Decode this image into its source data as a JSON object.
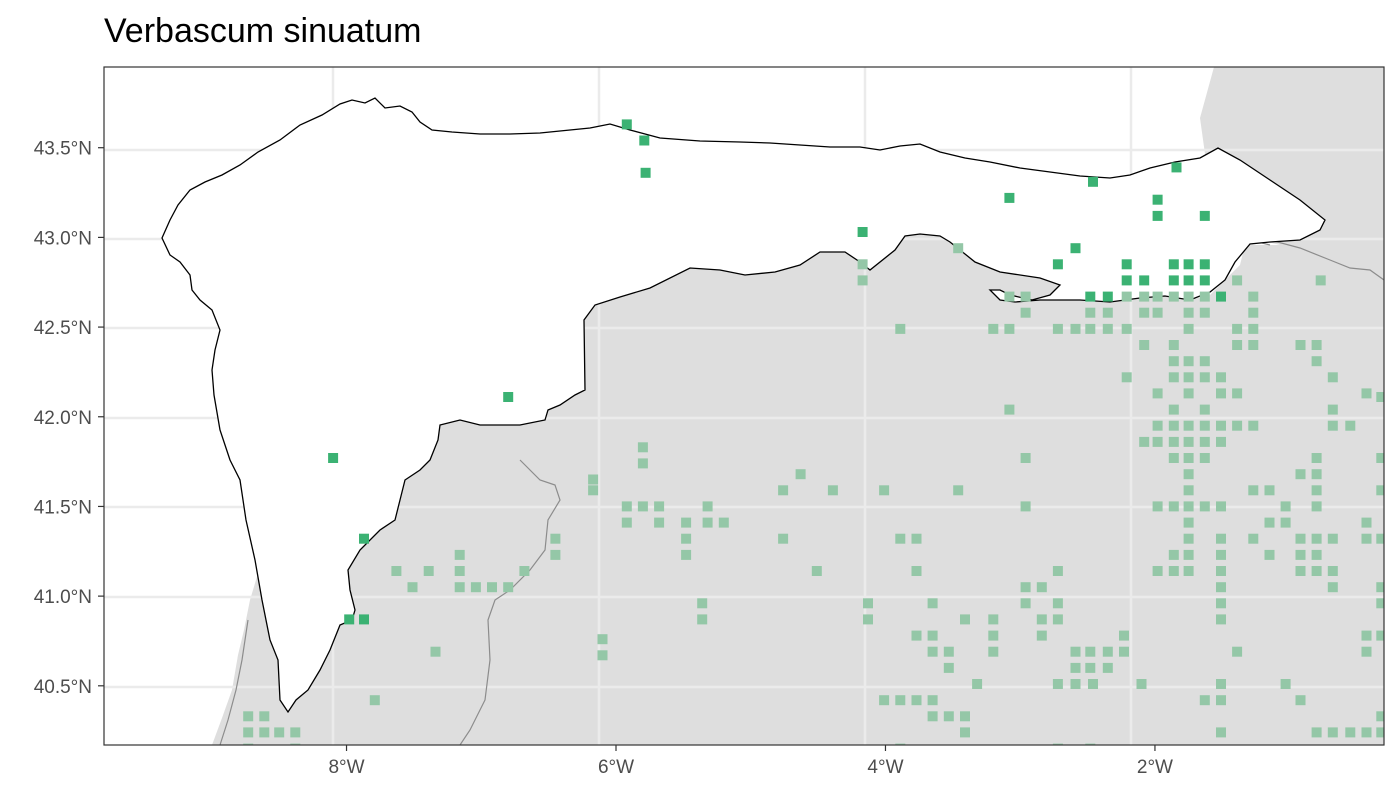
{
  "title": "Verbascum sinuatum",
  "colors": {
    "outside_fill": "#dedede",
    "region_fill": "#ffffff",
    "region_stroke": "#000000",
    "border_stroke": "#8c8c8c",
    "grid": "#ebebeb",
    "panel_border": "#333333",
    "point_in_region": "#3bb273",
    "point_outside": "#94c7a7"
  },
  "axes": {
    "x_range": [
      -9.8,
      -0.3
    ],
    "y_range": [
      40.17,
      43.95
    ],
    "x_ticks": [
      {
        "value": -8,
        "label": "8°W"
      },
      {
        "value": -6,
        "label": "6°W"
      },
      {
        "value": -4,
        "label": "4°W"
      },
      {
        "value": -2,
        "label": "2°W"
      }
    ],
    "y_ticks": [
      {
        "value": 43.5,
        "label": "43.5°N"
      },
      {
        "value": 43.0,
        "label": "43.0°N"
      },
      {
        "value": 42.5,
        "label": "42.5°N"
      },
      {
        "value": 42.0,
        "label": "42.0°N"
      },
      {
        "value": 41.5,
        "label": "41.5°N"
      },
      {
        "value": 41.0,
        "label": "41.0°N"
      },
      {
        "value": 40.5,
        "label": "40.5°N"
      }
    ],
    "grid": true
  },
  "points_in_region": [
    [
      -5.92,
      43.63
    ],
    [
      -5.79,
      43.54
    ],
    [
      -5.78,
      43.36
    ],
    [
      -4.17,
      43.03
    ],
    [
      -3.08,
      43.22
    ],
    [
      -2.46,
      43.31
    ],
    [
      -1.98,
      43.21
    ],
    [
      -1.98,
      43.12
    ],
    [
      -1.84,
      43.39
    ],
    [
      -1.63,
      43.12
    ],
    [
      -2.59,
      42.94
    ],
    [
      -2.72,
      42.85
    ],
    [
      -2.21,
      42.85
    ],
    [
      -2.21,
      42.76
    ],
    [
      -2.08,
      42.76
    ],
    [
      -1.86,
      42.85
    ],
    [
      -1.75,
      42.85
    ],
    [
      -1.63,
      42.85
    ],
    [
      -1.86,
      42.76
    ],
    [
      -1.75,
      42.76
    ],
    [
      -1.63,
      42.76
    ],
    [
      -1.51,
      42.67
    ],
    [
      -2.48,
      42.67
    ],
    [
      -2.35,
      42.67
    ],
    [
      -6.8,
      42.11
    ],
    [
      -8.1,
      41.77
    ],
    [
      -7.87,
      41.32
    ],
    [
      -7.98,
      40.87
    ],
    [
      -7.87,
      40.87
    ]
  ],
  "points_outside": [
    [
      -4.17,
      42.85
    ],
    [
      -4.17,
      42.76
    ],
    [
      -3.46,
      42.94
    ],
    [
      -3.08,
      42.67
    ],
    [
      -2.96,
      42.67
    ],
    [
      -2.96,
      42.58
    ],
    [
      -3.2,
      42.49
    ],
    [
      -3.08,
      42.49
    ],
    [
      -2.72,
      42.49
    ],
    [
      -2.59,
      42.49
    ],
    [
      -2.48,
      42.49
    ],
    [
      -2.35,
      42.49
    ],
    [
      -2.21,
      42.49
    ],
    [
      -2.21,
      42.67
    ],
    [
      -2.08,
      42.67
    ],
    [
      -1.98,
      42.67
    ],
    [
      -1.86,
      42.67
    ],
    [
      -1.75,
      42.67
    ],
    [
      -1.63,
      42.67
    ],
    [
      -2.48,
      42.58
    ],
    [
      -2.35,
      42.58
    ],
    [
      -2.08,
      42.58
    ],
    [
      -1.98,
      42.58
    ],
    [
      -1.75,
      42.58
    ],
    [
      -1.63,
      42.58
    ],
    [
      -1.75,
      42.49
    ],
    [
      -1.39,
      42.76
    ],
    [
      -1.27,
      42.67
    ],
    [
      -1.27,
      42.58
    ],
    [
      -1.27,
      42.49
    ],
    [
      -1.39,
      42.49
    ],
    [
      -1.39,
      42.4
    ],
    [
      -1.27,
      42.4
    ],
    [
      -2.08,
      42.4
    ],
    [
      -1.86,
      42.4
    ],
    [
      -1.86,
      42.31
    ],
    [
      -1.75,
      42.31
    ],
    [
      -1.63,
      42.31
    ],
    [
      -1.86,
      42.22
    ],
    [
      -1.75,
      42.22
    ],
    [
      -1.63,
      42.22
    ],
    [
      -1.51,
      42.22
    ],
    [
      -2.21,
      42.22
    ],
    [
      -1.98,
      42.13
    ],
    [
      -1.75,
      42.13
    ],
    [
      -1.51,
      42.13
    ],
    [
      -1.39,
      42.13
    ],
    [
      -1.86,
      42.04
    ],
    [
      -1.63,
      42.04
    ],
    [
      -1.98,
      41.95
    ],
    [
      -1.86,
      41.95
    ],
    [
      -1.75,
      41.95
    ],
    [
      -1.63,
      41.95
    ],
    [
      -1.51,
      41.95
    ],
    [
      -1.39,
      41.95
    ],
    [
      -1.27,
      41.95
    ],
    [
      -1.98,
      41.86
    ],
    [
      -1.86,
      41.86
    ],
    [
      -1.75,
      41.86
    ],
    [
      -1.63,
      41.86
    ],
    [
      -1.51,
      41.86
    ],
    [
      -2.08,
      41.86
    ],
    [
      -1.86,
      41.77
    ],
    [
      -1.75,
      41.77
    ],
    [
      -1.63,
      41.77
    ],
    [
      -1.75,
      41.68
    ],
    [
      -1.75,
      41.59
    ],
    [
      -1.98,
      41.5
    ],
    [
      -1.86,
      41.5
    ],
    [
      -1.75,
      41.5
    ],
    [
      -1.63,
      41.5
    ],
    [
      -1.51,
      41.5
    ],
    [
      -1.75,
      41.41
    ],
    [
      -1.75,
      41.32
    ],
    [
      -1.51,
      41.32
    ],
    [
      -1.86,
      41.23
    ],
    [
      -1.75,
      41.23
    ],
    [
      -1.51,
      41.23
    ],
    [
      -1.98,
      41.14
    ],
    [
      -1.86,
      41.14
    ],
    [
      -1.75,
      41.14
    ],
    [
      -1.51,
      41.14
    ],
    [
      -1.27,
      41.59
    ],
    [
      -1.15,
      41.59
    ],
    [
      -1.27,
      41.32
    ],
    [
      -1.15,
      41.23
    ],
    [
      -1.03,
      41.41
    ],
    [
      -1.03,
      41.5
    ],
    [
      -1.15,
      41.41
    ],
    [
      -0.92,
      41.68
    ],
    [
      -0.8,
      41.77
    ],
    [
      -0.8,
      41.68
    ],
    [
      -0.8,
      41.59
    ],
    [
      -0.8,
      41.5
    ],
    [
      -0.92,
      41.32
    ],
    [
      -0.8,
      41.32
    ],
    [
      -0.68,
      41.32
    ],
    [
      -0.92,
      41.23
    ],
    [
      -0.8,
      41.23
    ],
    [
      -0.92,
      41.14
    ],
    [
      -0.8,
      41.14
    ],
    [
      -0.68,
      41.14
    ],
    [
      -0.68,
      41.05
    ],
    [
      -0.92,
      42.4
    ],
    [
      -0.8,
      42.4
    ],
    [
      -0.8,
      42.31
    ],
    [
      -0.68,
      42.22
    ],
    [
      -0.68,
      42.04
    ],
    [
      -0.68,
      41.95
    ],
    [
      -0.55,
      41.95
    ],
    [
      -0.77,
      42.76
    ],
    [
      -0.43,
      42.13
    ],
    [
      -0.32,
      42.11
    ],
    [
      -0.32,
      41.77
    ],
    [
      -0.43,
      41.41
    ],
    [
      -0.43,
      41.32
    ],
    [
      -0.32,
      41.32
    ],
    [
      -0.32,
      41.59
    ],
    [
      -0.32,
      41.05
    ],
    [
      -0.32,
      40.96
    ],
    [
      -0.32,
      40.78
    ],
    [
      -0.43,
      40.78
    ],
    [
      -0.43,
      40.69
    ],
    [
      -1.03,
      40.51
    ],
    [
      -0.92,
      40.42
    ],
    [
      -0.68,
      40.24
    ],
    [
      -0.55,
      40.24
    ],
    [
      -0.43,
      40.24
    ],
    [
      -0.32,
      40.24
    ],
    [
      -0.32,
      40.33
    ],
    [
      -0.8,
      40.24
    ],
    [
      -1.39,
      40.69
    ],
    [
      -1.51,
      40.24
    ],
    [
      -1.63,
      40.42
    ],
    [
      -1.51,
      40.42
    ],
    [
      -1.51,
      40.87
    ],
    [
      -1.51,
      40.96
    ],
    [
      -1.51,
      41.05
    ],
    [
      -1.51,
      40.51
    ],
    [
      -3.08,
      42.04
    ],
    [
      -2.96,
      41.77
    ],
    [
      -2.96,
      41.5
    ],
    [
      -3.46,
      41.59
    ],
    [
      -3.89,
      42.49
    ],
    [
      -4.01,
      41.59
    ],
    [
      -4.51,
      41.14
    ],
    [
      -4.39,
      41.59
    ],
    [
      -4.63,
      41.68
    ],
    [
      -4.76,
      41.59
    ],
    [
      -4.76,
      41.32
    ],
    [
      -3.89,
      41.32
    ],
    [
      -3.77,
      41.32
    ],
    [
      -3.77,
      41.14
    ],
    [
      -4.13,
      40.96
    ],
    [
      -4.13,
      40.87
    ],
    [
      -3.65,
      40.96
    ],
    [
      -3.77,
      40.78
    ],
    [
      -3.65,
      40.78
    ],
    [
      -3.65,
      40.69
    ],
    [
      -3.53,
      40.69
    ],
    [
      -3.53,
      40.6
    ],
    [
      -3.41,
      40.87
    ],
    [
      -3.2,
      40.87
    ],
    [
      -3.2,
      40.78
    ],
    [
      -3.2,
      40.69
    ],
    [
      -3.32,
      40.51
    ],
    [
      -2.96,
      41.05
    ],
    [
      -2.84,
      41.05
    ],
    [
      -2.72,
      41.14
    ],
    [
      -2.96,
      40.96
    ],
    [
      -2.72,
      40.96
    ],
    [
      -2.84,
      40.87
    ],
    [
      -2.72,
      40.87
    ],
    [
      -2.84,
      40.78
    ],
    [
      -2.59,
      40.69
    ],
    [
      -2.48,
      40.69
    ],
    [
      -2.35,
      40.69
    ],
    [
      -2.59,
      40.6
    ],
    [
      -2.48,
      40.6
    ],
    [
      -2.35,
      40.6
    ],
    [
      -2.23,
      40.69
    ],
    [
      -2.23,
      40.78
    ],
    [
      -2.72,
      40.51
    ],
    [
      -2.59,
      40.51
    ],
    [
      -2.46,
      40.51
    ],
    [
      -2.1,
      40.51
    ],
    [
      -4.01,
      40.42
    ],
    [
      -3.89,
      40.42
    ],
    [
      -3.77,
      40.42
    ],
    [
      -3.65,
      40.42
    ],
    [
      -3.65,
      40.33
    ],
    [
      -3.53,
      40.33
    ],
    [
      -3.41,
      40.33
    ],
    [
      -3.41,
      40.24
    ],
    [
      -3.89,
      40.15
    ],
    [
      -2.72,
      40.15
    ],
    [
      -2.48,
      40.15
    ],
    [
      -5.32,
      41.41
    ],
    [
      -5.32,
      41.5
    ],
    [
      -5.2,
      41.41
    ],
    [
      -5.48,
      41.41
    ],
    [
      -5.48,
      41.32
    ],
    [
      -5.48,
      41.23
    ],
    [
      -5.68,
      41.5
    ],
    [
      -5.68,
      41.41
    ],
    [
      -5.8,
      41.5
    ],
    [
      -5.92,
      41.5
    ],
    [
      -5.92,
      41.41
    ],
    [
      -5.8,
      41.74
    ],
    [
      -5.8,
      41.83
    ],
    [
      -6.17,
      41.65
    ],
    [
      -6.17,
      41.59
    ],
    [
      -6.45,
      41.32
    ],
    [
      -6.45,
      41.23
    ],
    [
      -6.68,
      41.14
    ],
    [
      -6.8,
      41.05
    ],
    [
      -6.92,
      41.05
    ],
    [
      -7.04,
      41.05
    ],
    [
      -7.16,
      41.05
    ],
    [
      -7.16,
      41.14
    ],
    [
      -7.16,
      41.23
    ],
    [
      -7.39,
      41.14
    ],
    [
      -7.51,
      41.05
    ],
    [
      -7.63,
      41.14
    ],
    [
      -7.34,
      40.69
    ],
    [
      -7.79,
      40.42
    ],
    [
      -5.36,
      40.96
    ],
    [
      -5.36,
      40.87
    ],
    [
      -6.1,
      40.76
    ],
    [
      -6.1,
      40.67
    ],
    [
      -8.73,
      40.33
    ],
    [
      -8.61,
      40.33
    ],
    [
      -8.73,
      40.24
    ],
    [
      -8.61,
      40.24
    ],
    [
      -8.5,
      40.24
    ],
    [
      -8.38,
      40.24
    ],
    [
      -8.73,
      40.15
    ],
    [
      -8.38,
      40.15
    ]
  ]
}
